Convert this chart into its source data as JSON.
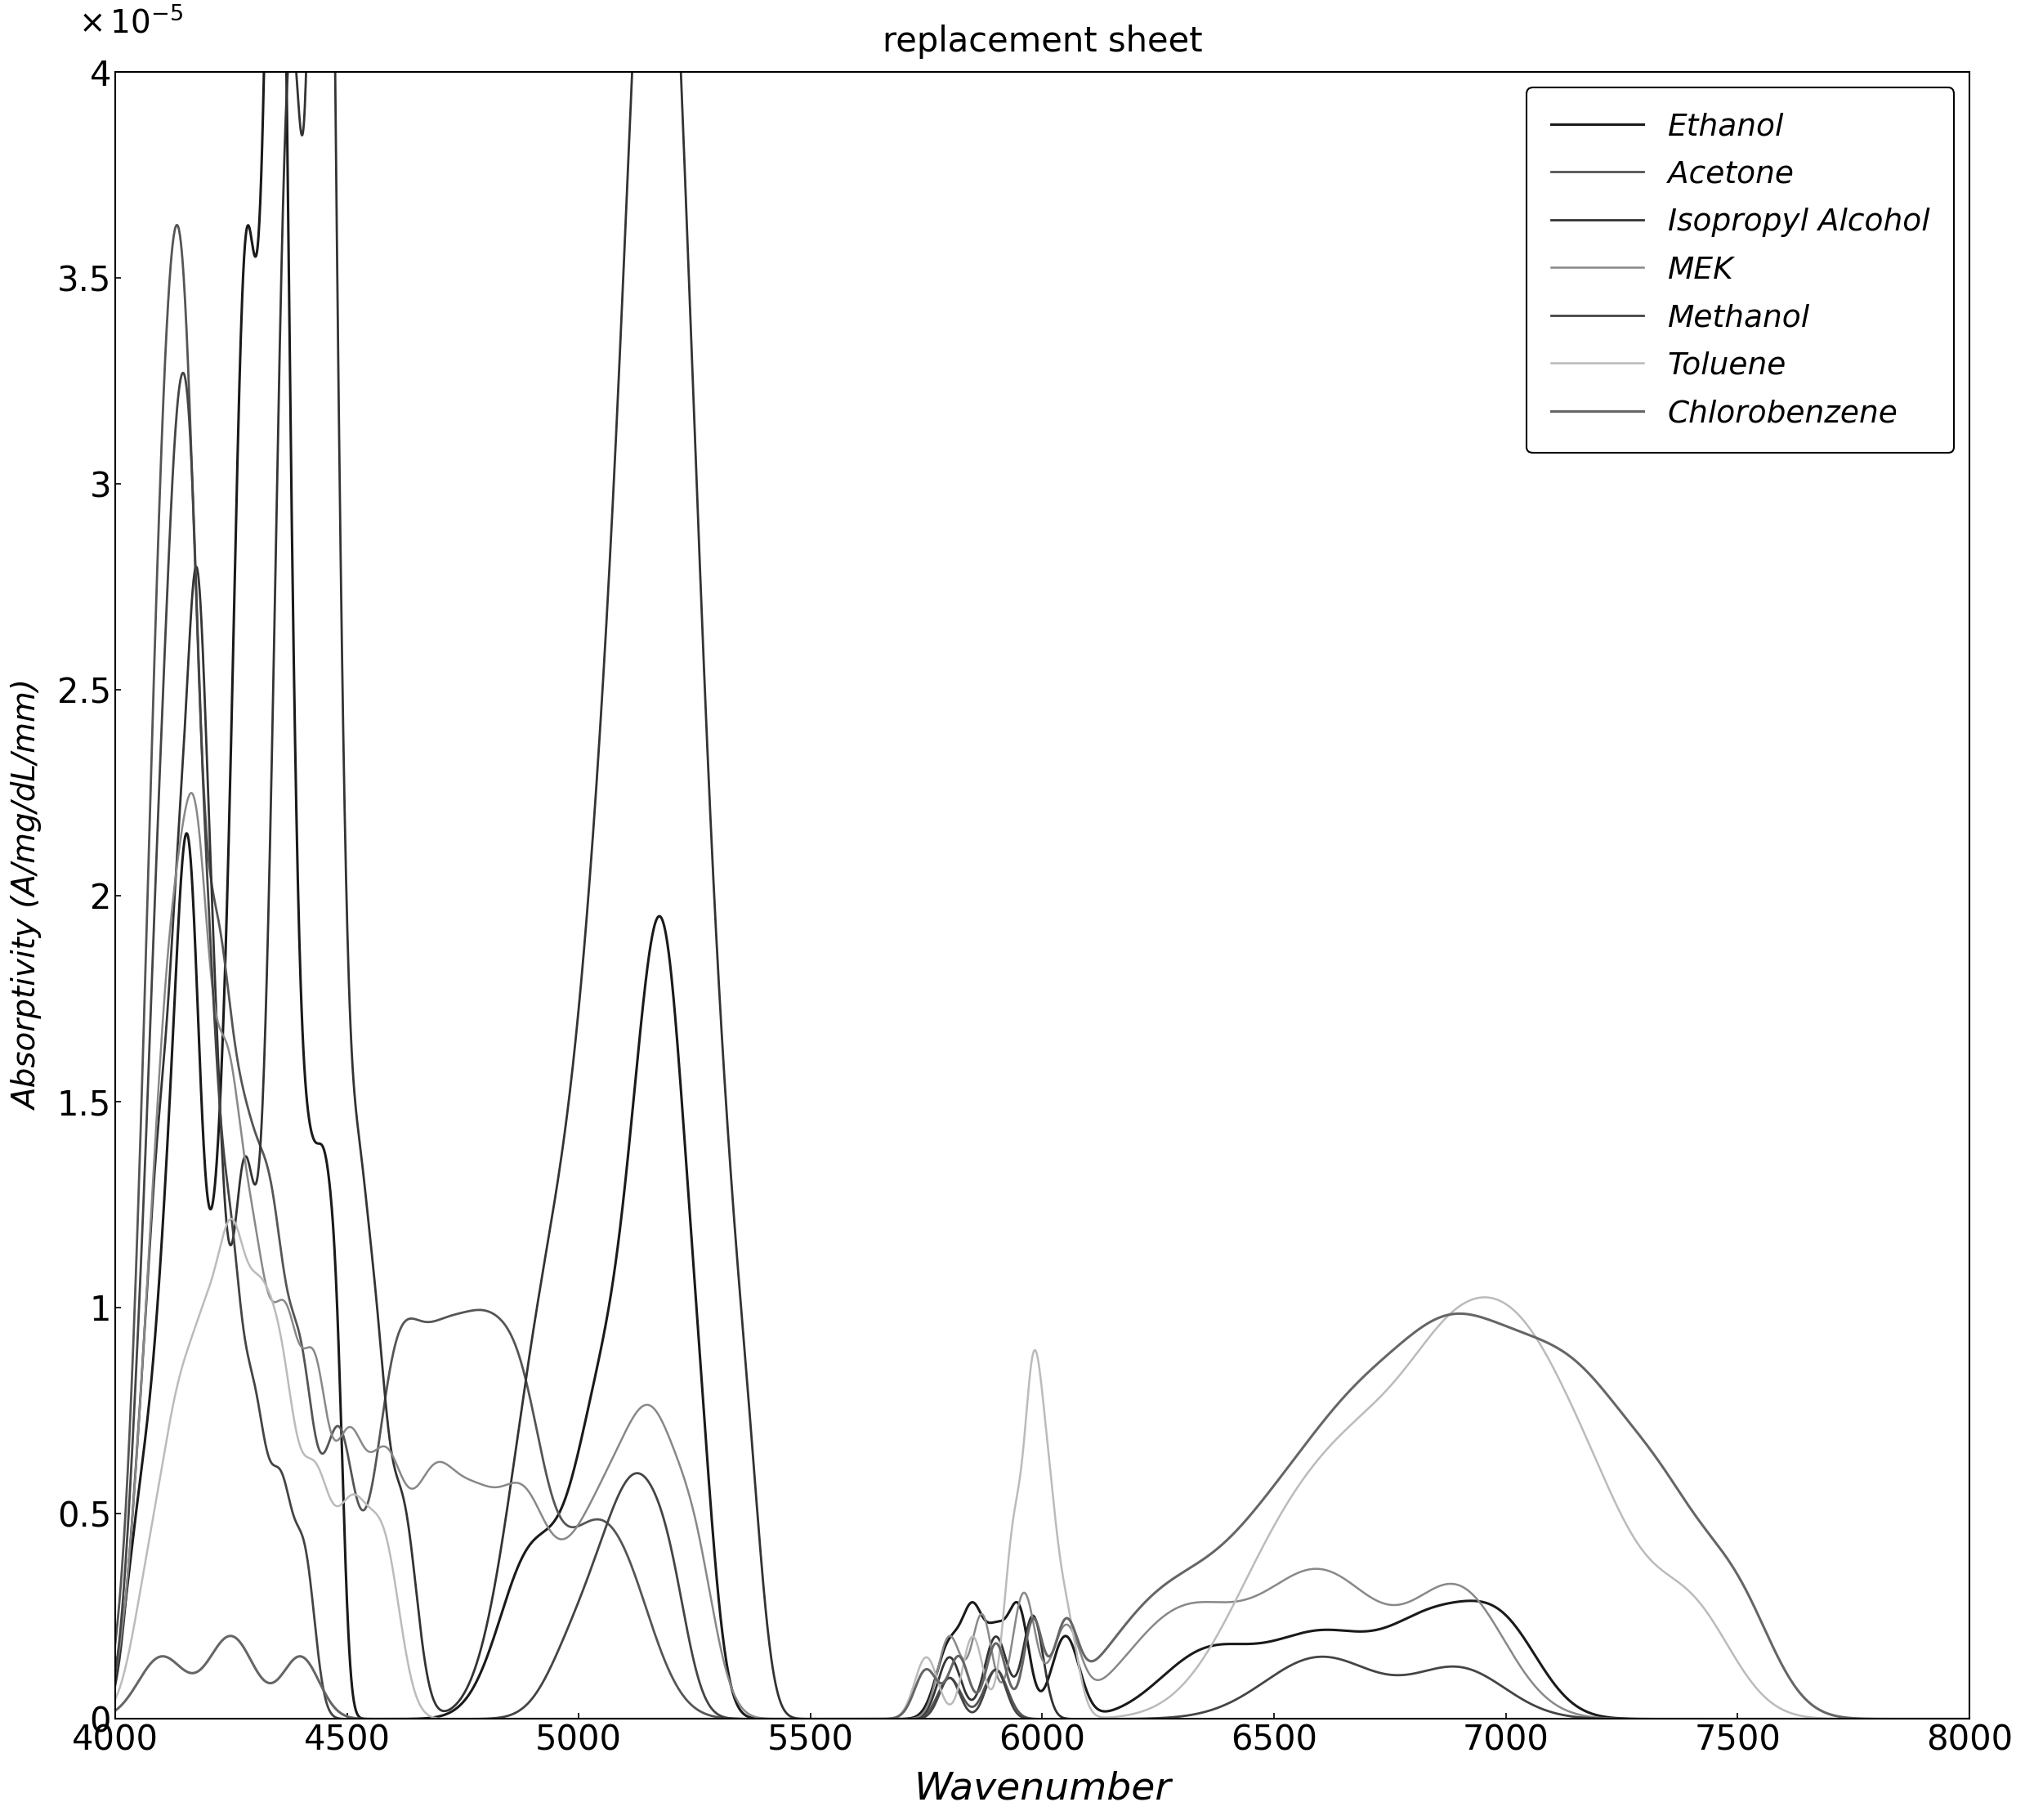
{
  "title": "replacement sheet",
  "xlabel": "Wavenumber",
  "ylabel": "Absorptivity (A/mg/dL/mm)",
  "xlim": [
    4000,
    8000
  ],
  "ylim": [
    0,
    4e-05
  ],
  "background_color": "#ffffff",
  "legend_labels": [
    "Ethanol",
    "Acetone",
    "Isopropyl Alcohol",
    "MEK",
    "Methanol",
    "Toluene",
    "Chlorobenzene"
  ],
  "line_colors": [
    "#1a1a1a",
    "#555555",
    "#333333",
    "#888888",
    "#444444",
    "#bbbbbb",
    "#666666"
  ],
  "line_widths": [
    2.2,
    2.0,
    2.0,
    1.8,
    2.0,
    1.8,
    2.2
  ]
}
